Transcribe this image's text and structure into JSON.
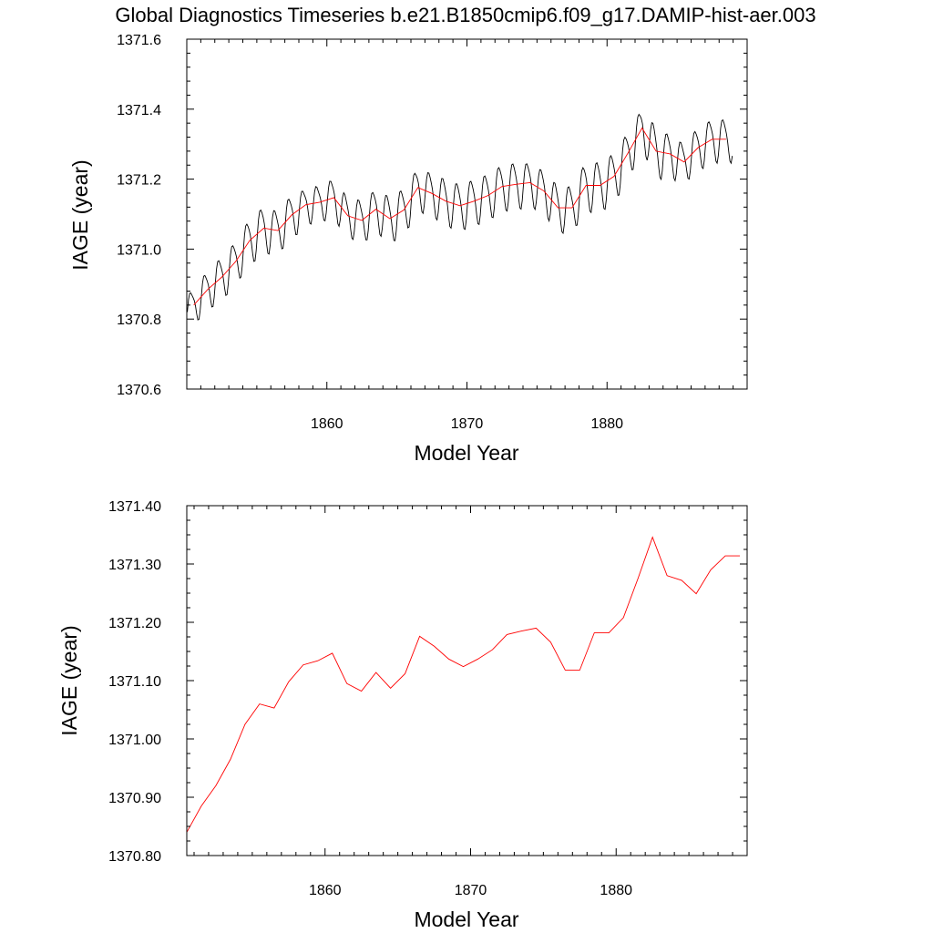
{
  "title": "Global Diagnostics Timeseries b.e21.B1850cmip6.f09_g17.DAMIP-hist-aer.003",
  "colors": {
    "monthly": "#000000",
    "annual": "#ff0000",
    "frame": "#000000"
  },
  "chart_data": [
    {
      "type": "line",
      "panel": "top",
      "xlabel": "Model Year",
      "ylabel": "IAGE (year)",
      "xlim": [
        1850,
        1890
      ],
      "ylim": [
        1370.6,
        1371.6
      ],
      "x_ticks": [
        1860,
        1870,
        1880
      ],
      "x_tick_labels": [
        "1860",
        "1870",
        "1880"
      ],
      "y_ticks": [
        1370.6,
        1370.8,
        1371.0,
        1371.2,
        1371.4,
        1371.6
      ],
      "y_tick_labels": [
        "1370.6",
        "1370.8",
        "1371.0",
        "1371.2",
        "1371.4",
        "1371.6"
      ],
      "series": [
        {
          "color": "#000000",
          "description": "monthly values: annual mean plus a seasonal cycle",
          "x_start": 1850.04,
          "x_step": 0.0833,
          "seasonal_amplitude": [
            0.05,
            0.055,
            0.06,
            0.06,
            0.065,
            0.065,
            0.06,
            0.06,
            0.05,
            0.05,
            0.055,
            0.055,
            0.06,
            0.06,
            0.065,
            0.065,
            0.06,
            0.06,
            0.065,
            0.065,
            0.065,
            0.065,
            0.065,
            0.065,
            0.06,
            0.06,
            0.065,
            0.065,
            0.07,
            0.07,
            0.07,
            0.065,
            0.06,
            0.07,
            0.06,
            0.055,
            0.06,
            0.06,
            0.06
          ],
          "annual_ref": [
            1370.84,
            1370.885,
            1370.92,
            1370.965,
            1371.025,
            1371.06,
            1371.053,
            1371.098,
            1371.127,
            1371.134,
            1371.147,
            1371.095,
            1371.082,
            1371.114,
            1371.087,
            1371.112,
            1371.176,
            1371.159,
            1371.137,
            1371.124,
            1371.137,
            1371.153,
            1371.179,
            1371.185,
            1371.19,
            1371.166,
            1371.118,
            1371.118,
            1371.182,
            1371.182,
            1371.208,
            1371.275,
            1371.346,
            1371.28,
            1371.272,
            1371.249,
            1371.29,
            1371.314,
            1371.314
          ]
        },
        {
          "color": "#ff0000",
          "description": "annual mean",
          "x": [
            1850.5,
            1851.5,
            1852.5,
            1853.5,
            1854.5,
            1855.5,
            1856.5,
            1857.5,
            1858.5,
            1859.5,
            1860.5,
            1861.5,
            1862.5,
            1863.5,
            1864.5,
            1865.5,
            1866.5,
            1867.5,
            1868.5,
            1869.5,
            1870.5,
            1871.5,
            1872.5,
            1873.5,
            1874.5,
            1875.5,
            1876.5,
            1877.5,
            1878.5,
            1879.5,
            1880.5,
            1881.5,
            1882.5,
            1883.5,
            1884.5,
            1885.5,
            1886.5,
            1887.5,
            1888.5
          ],
          "y": [
            1370.84,
            1370.885,
            1370.92,
            1370.965,
            1371.025,
            1371.06,
            1371.053,
            1371.098,
            1371.127,
            1371.134,
            1371.147,
            1371.095,
            1371.082,
            1371.114,
            1371.087,
            1371.112,
            1371.176,
            1371.159,
            1371.137,
            1371.124,
            1371.137,
            1371.153,
            1371.179,
            1371.185,
            1371.19,
            1371.166,
            1371.118,
            1371.118,
            1371.182,
            1371.182,
            1371.208,
            1371.275,
            1371.346,
            1371.28,
            1371.272,
            1371.249,
            1371.29,
            1371.314,
            1371.314
          ]
        }
      ]
    },
    {
      "type": "line",
      "panel": "bottom",
      "xlabel": "Model Year",
      "ylabel": "IAGE (year)",
      "xlim": [
        1850.5,
        1889
      ],
      "ylim": [
        1370.8,
        1371.4
      ],
      "x_ticks": [
        1860,
        1870,
        1880
      ],
      "x_tick_labels": [
        "1860",
        "1870",
        "1880"
      ],
      "y_ticks": [
        1370.8,
        1370.9,
        1371.0,
        1371.1,
        1371.2,
        1371.3,
        1371.4
      ],
      "y_tick_labels": [
        "1370.80",
        "1370.90",
        "1371.00",
        "1371.10",
        "1371.20",
        "1371.30",
        "1371.40"
      ],
      "series": [
        {
          "color": "#ff0000",
          "description": "annual mean",
          "x": [
            1850.5,
            1851.5,
            1852.5,
            1853.5,
            1854.5,
            1855.5,
            1856.5,
            1857.5,
            1858.5,
            1859.5,
            1860.5,
            1861.5,
            1862.5,
            1863.5,
            1864.5,
            1865.5,
            1866.5,
            1867.5,
            1868.5,
            1869.5,
            1870.5,
            1871.5,
            1872.5,
            1873.5,
            1874.5,
            1875.5,
            1876.5,
            1877.5,
            1878.5,
            1879.5,
            1880.5,
            1881.5,
            1882.5,
            1883.5,
            1884.5,
            1885.5,
            1886.5,
            1887.5,
            1888.5
          ],
          "y": [
            1370.84,
            1370.885,
            1370.92,
            1370.965,
            1371.025,
            1371.06,
            1371.053,
            1371.098,
            1371.127,
            1371.134,
            1371.147,
            1371.095,
            1371.082,
            1371.114,
            1371.087,
            1371.112,
            1371.176,
            1371.159,
            1371.137,
            1371.124,
            1371.137,
            1371.153,
            1371.179,
            1371.185,
            1371.19,
            1371.166,
            1371.118,
            1371.118,
            1371.182,
            1371.182,
            1371.208,
            1371.275,
            1371.346,
            1371.28,
            1371.272,
            1371.249,
            1371.29,
            1371.314,
            1371.314
          ]
        }
      ]
    }
  ]
}
